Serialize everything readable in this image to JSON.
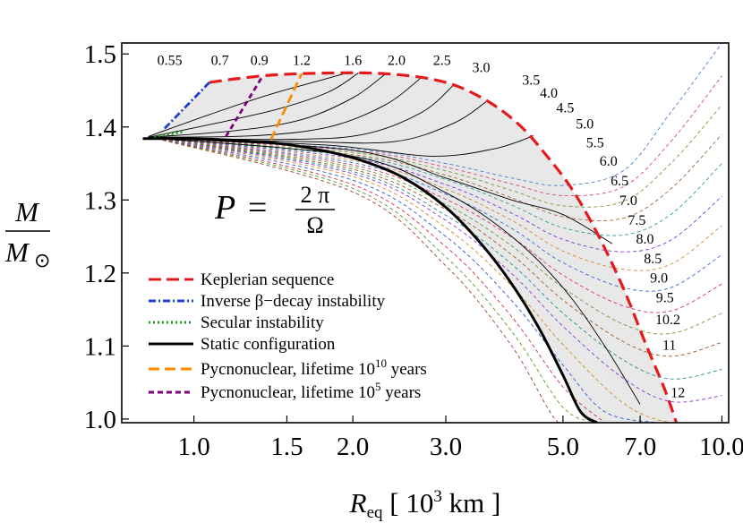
{
  "chart_data": {
    "type": "line",
    "x_scale": "log",
    "xlim": [
      0.73,
      10.3
    ],
    "ylim": [
      0.995,
      1.515
    ],
    "x_ticks": [
      {
        "value": 1.0,
        "label": "1.0"
      },
      {
        "value": 1.5,
        "label": "1.5"
      },
      {
        "value": 2.0,
        "label": "2.0"
      },
      {
        "value": 3.0,
        "label": "3.0"
      },
      {
        "value": 5.0,
        "label": "5.0"
      },
      {
        "value": 7.0,
        "label": "7.0"
      },
      {
        "value": 10.0,
        "label": "10.0"
      }
    ],
    "y_ticks": [
      {
        "value": 1.0,
        "label": "1.0"
      },
      {
        "value": 1.1,
        "label": "1.1"
      },
      {
        "value": 1.2,
        "label": "1.2"
      },
      {
        "value": 1.3,
        "label": "1.3"
      },
      {
        "value": 1.4,
        "label": "1.4"
      },
      {
        "value": 1.5,
        "label": "1.5"
      }
    ],
    "xlabel": {
      "main": "R",
      "sub": "eq",
      "rest": " [ 10",
      "sup": "3",
      "end": " km ]"
    },
    "ylabel": {
      "numerator": "M",
      "denominator": "M",
      "symbol": "⊙"
    },
    "formula": {
      "lhs": "P",
      "eq": "=",
      "numerator": "2 π",
      "denominator": "Ω"
    },
    "legend": {
      "position": "lower-left",
      "items": [
        {
          "label": "Keplerian sequence",
          "color": "#e41a1c",
          "dash": "long-dashed"
        },
        {
          "label": "Inverse β−decay instability",
          "color": "#1f3fcf",
          "dash": "dash-dot"
        },
        {
          "label": "Secular instability",
          "color": "#1a9a1a",
          "dash": "dotted"
        },
        {
          "label": "Static configuration",
          "color": "#000000",
          "dash": "solid"
        },
        {
          "label": "Pycnonuclear, lifetime 10",
          "sup": "10",
          "after": " years",
          "color": "#ff8c00",
          "dash": "long-dashed"
        },
        {
          "label": "Pycnonuclear, lifetime 10",
          "sup": "5",
          "after": " years",
          "color": "#7b007b",
          "dash": "dashed"
        }
      ]
    },
    "static": {
      "x": [
        0.8,
        0.95,
        1.1,
        1.3,
        1.5,
        1.8,
        2.1,
        2.5,
        3.0,
        3.5,
        4.0,
        4.5,
        5.0,
        5.4,
        5.8
      ],
      "y": [
        1.384,
        1.384,
        1.383,
        1.38,
        1.376,
        1.366,
        1.353,
        1.33,
        1.29,
        1.24,
        1.185,
        1.125,
        1.06,
        1.01,
        0.995
      ]
    },
    "keplerian": {
      "x": [
        1.07,
        1.2,
        1.4,
        1.6,
        1.85,
        2.1,
        2.4,
        2.8,
        3.2,
        3.7,
        4.2,
        4.7,
        5.2,
        5.8,
        6.5,
        7.2,
        7.8,
        8.2
      ],
      "y": [
        1.461,
        1.466,
        1.471,
        1.473,
        1.474,
        1.474,
        1.472,
        1.466,
        1.454,
        1.43,
        1.398,
        1.357,
        1.315,
        1.255,
        1.18,
        1.1,
        1.04,
        0.995
      ]
    },
    "inverse_beta": {
      "x": [
        0.88,
        1.07
      ],
      "y": [
        1.398,
        1.461
      ]
    },
    "secular": {
      "x": [
        0.84,
        0.95
      ],
      "y": [
        1.387,
        1.393
      ]
    },
    "pycno_1e10": {
      "x": [
        1.4,
        1.6
      ],
      "y": [
        1.383,
        1.473
      ]
    },
    "pycno_1e5": {
      "x": [
        1.15,
        1.35
      ],
      "y": [
        1.387,
        1.47
      ]
    },
    "periods_solid": [
      {
        "label": "0.55",
        "x": [
          0.82,
          1.1,
          1.4,
          1.7,
          1.95
        ],
        "y": [
          1.387,
          1.42,
          1.445,
          1.462,
          1.474
        ]
      },
      {
        "label": "0.7",
        "x": [
          0.82,
          1.1,
          1.45,
          1.8,
          2.05
        ],
        "y": [
          1.386,
          1.405,
          1.425,
          1.448,
          1.474
        ]
      },
      {
        "label": "0.9",
        "x": [
          0.82,
          1.2,
          1.6,
          2.0,
          2.3
        ],
        "y": [
          1.386,
          1.395,
          1.41,
          1.44,
          1.472
        ]
      },
      {
        "label": "1.2",
        "x": [
          0.82,
          1.3,
          1.8,
          2.3,
          2.7
        ],
        "y": [
          1.386,
          1.388,
          1.4,
          1.43,
          1.468
        ]
      },
      {
        "label": "1.6",
        "x": [
          0.82,
          1.5,
          2.1,
          2.7,
          3.1
        ],
        "y": [
          1.385,
          1.383,
          1.39,
          1.42,
          1.457
        ]
      },
      {
        "label": "2.0",
        "x": [
          0.82,
          1.6,
          2.4,
          3.1,
          3.6
        ],
        "y": [
          1.385,
          1.38,
          1.38,
          1.405,
          1.436
        ]
      },
      {
        "label": "2.5",
        "x": [
          0.82,
          1.8,
          2.8,
          3.7,
          4.4
        ],
        "y": [
          1.385,
          1.375,
          1.36,
          1.37,
          1.388
        ]
      },
      {
        "label": "3.0",
        "x": [
          0.82,
          2.0,
          3.0,
          4.0,
          5.0,
          6.2
        ],
        "y": [
          1.385,
          1.368,
          1.33,
          1.3,
          1.28,
          1.24
        ]
      },
      {
        "label": "",
        "x": [
          0.82,
          2.0,
          3.0,
          4.0,
          5.0,
          6.0,
          7.0
        ],
        "y": [
          1.385,
          1.36,
          1.31,
          1.25,
          1.18,
          1.1,
          1.02
        ]
      }
    ],
    "periods_dashed": [
      {
        "label": "3.5",
        "color": "#4a7fcf",
        "x": [
          0.85,
          2.0,
          3.0,
          4.0,
          5.0,
          6.5,
          8.0,
          10.0
        ],
        "y": [
          1.384,
          1.37,
          1.35,
          1.33,
          1.32,
          1.34,
          1.42,
          1.515
        ]
      },
      {
        "label": "4.0",
        "color": "#cf4a7f",
        "x": [
          0.85,
          2.0,
          3.0,
          4.0,
          5.0,
          6.5,
          8.0,
          10.0
        ],
        "y": [
          1.384,
          1.368,
          1.345,
          1.322,
          1.306,
          1.318,
          1.38,
          1.47
        ]
      },
      {
        "label": "4.5",
        "color": "#7f9a3a",
        "x": [
          0.85,
          2.0,
          3.0,
          4.0,
          5.0,
          6.5,
          8.0,
          10.0
        ],
        "y": [
          1.384,
          1.365,
          1.34,
          1.313,
          1.292,
          1.298,
          1.35,
          1.43
        ]
      },
      {
        "label": "5.0",
        "color": "#9a6a3a",
        "x": [
          0.85,
          2.0,
          3.0,
          4.0,
          5.0,
          6.5,
          8.0,
          10.0
        ],
        "y": [
          1.384,
          1.362,
          1.334,
          1.303,
          1.277,
          1.275,
          1.315,
          1.39
        ]
      },
      {
        "label": "5.5",
        "color": "#3a9a9a",
        "x": [
          0.85,
          2.0,
          3.0,
          4.0,
          5.0,
          6.5,
          8.0,
          10.0
        ],
        "y": [
          1.384,
          1.36,
          1.328,
          1.293,
          1.262,
          1.252,
          1.28,
          1.35
        ]
      },
      {
        "label": "6.0",
        "color": "#7a3acf",
        "x": [
          0.85,
          2.0,
          3.0,
          4.0,
          5.0,
          6.5,
          8.0,
          10.0
        ],
        "y": [
          1.384,
          1.357,
          1.321,
          1.282,
          1.246,
          1.229,
          1.245,
          1.305
        ]
      },
      {
        "label": "6.5",
        "color": "#cf8a3a",
        "x": [
          0.85,
          2.0,
          3.0,
          4.0,
          5.0,
          6.5,
          8.0,
          10.0
        ],
        "y": [
          1.384,
          1.354,
          1.315,
          1.272,
          1.23,
          1.205,
          1.212,
          1.265
        ]
      },
      {
        "label": "7.0",
        "color": "#3a6acf",
        "x": [
          0.85,
          2.0,
          3.0,
          4.0,
          5.0,
          6.5,
          8.0,
          10.0
        ],
        "y": [
          1.384,
          1.351,
          1.308,
          1.261,
          1.214,
          1.18,
          1.18,
          1.225
        ]
      },
      {
        "label": "7.5",
        "color": "#cf3a6a",
        "x": [
          0.85,
          2.0,
          3.0,
          4.0,
          5.0,
          6.5,
          8.0,
          10.0
        ],
        "y": [
          1.384,
          1.348,
          1.301,
          1.249,
          1.197,
          1.155,
          1.148,
          1.185
        ]
      },
      {
        "label": "8.0",
        "color": "#6a9a3a",
        "x": [
          0.85,
          2.0,
          3.0,
          4.0,
          5.0,
          6.5,
          8.0,
          10.0
        ],
        "y": [
          1.384,
          1.345,
          1.294,
          1.237,
          1.18,
          1.13,
          1.117,
          1.145
        ]
      },
      {
        "label": "8.5",
        "color": "#9a5a2a",
        "x": [
          0.85,
          2.0,
          3.0,
          4.0,
          5.0,
          6.5,
          8.0,
          10.0
        ],
        "y": [
          1.384,
          1.342,
          1.287,
          1.225,
          1.163,
          1.106,
          1.086,
          1.105
        ]
      },
      {
        "label": "9.0",
        "color": "#2a8a8a",
        "x": [
          0.85,
          2.0,
          3.0,
          4.0,
          5.0,
          6.5,
          8.0,
          10.0
        ],
        "y": [
          1.384,
          1.339,
          1.279,
          1.212,
          1.145,
          1.081,
          1.055,
          1.068
        ]
      },
      {
        "label": "9.5",
        "color": "#8a3acf",
        "x": [
          0.85,
          2.0,
          3.0,
          4.0,
          5.0,
          6.5,
          8.0,
          10.0
        ],
        "y": [
          1.384,
          1.336,
          1.272,
          1.199,
          1.127,
          1.056,
          1.024,
          1.032
        ]
      },
      {
        "label": "10.2",
        "color": "#cf8a2a",
        "x": [
          0.85,
          2.0,
          3.0,
          4.0,
          5.0,
          6.5,
          8.0,
          10.0
        ],
        "y": [
          1.384,
          1.332,
          1.262,
          1.182,
          1.102,
          1.022,
          0.995,
          0.995
        ]
      },
      {
        "label": "11",
        "color": "#2a5acf",
        "x": [
          0.85,
          2.0,
          3.0,
          4.0,
          5.0,
          6.0,
          7.5
        ],
        "y": [
          1.384,
          1.327,
          1.25,
          1.162,
          1.074,
          1.01,
          0.995
        ]
      },
      {
        "label": "12",
        "color": "#cf2a5a",
        "x": [
          0.85,
          2.0,
          3.0,
          4.0,
          5.0,
          6.0
        ],
        "y": [
          1.384,
          1.321,
          1.236,
          1.14,
          1.044,
          0.995
        ]
      },
      {
        "label": "",
        "color": "#5a9a2a",
        "x": [
          0.85,
          2.0,
          3.0,
          4.0,
          5.0,
          5.8
        ],
        "y": [
          1.384,
          1.316,
          1.222,
          1.12,
          1.016,
          0.995
        ]
      },
      {
        "label": "",
        "color": "#9a4a2a",
        "x": [
          0.85,
          2.0,
          3.0,
          4.0,
          4.9,
          5.6
        ],
        "y": [
          1.384,
          1.311,
          1.21,
          1.1,
          0.995,
          0.995
        ]
      }
    ],
    "period_label_positions_data": [
      {
        "label": "0.55",
        "x": 0.9,
        "y": 1.485
      },
      {
        "label": "0.7",
        "x": 1.12,
        "y": 1.485
      },
      {
        "label": "0.9",
        "x": 1.33,
        "y": 1.485
      },
      {
        "label": "1.2",
        "x": 1.6,
        "y": 1.485
      },
      {
        "label": "1.6",
        "x": 2.0,
        "y": 1.485
      },
      {
        "label": "2.0",
        "x": 2.42,
        "y": 1.485
      },
      {
        "label": "2.5",
        "x": 2.95,
        "y": 1.485
      },
      {
        "label": "3.0",
        "x": 3.5,
        "y": 1.475
      },
      {
        "label": "3.5",
        "x": 4.35,
        "y": 1.458
      },
      {
        "label": "4.0",
        "x": 4.7,
        "y": 1.44
      },
      {
        "label": "4.5",
        "x": 5.05,
        "y": 1.42
      },
      {
        "label": "5.0",
        "x": 5.5,
        "y": 1.398
      },
      {
        "label": "5.5",
        "x": 5.75,
        "y": 1.372
      },
      {
        "label": "6.0",
        "x": 6.1,
        "y": 1.347
      },
      {
        "label": "6.5",
        "x": 6.4,
        "y": 1.32
      },
      {
        "label": "7.0",
        "x": 6.65,
        "y": 1.293
      },
      {
        "label": "7.5",
        "x": 6.9,
        "y": 1.266
      },
      {
        "label": "8.0",
        "x": 7.15,
        "y": 1.24
      },
      {
        "label": "8.5",
        "x": 7.4,
        "y": 1.213
      },
      {
        "label": "9.0",
        "x": 7.6,
        "y": 1.187
      },
      {
        "label": "9.5",
        "x": 7.8,
        "y": 1.16
      },
      {
        "label": "10.2",
        "x": 7.9,
        "y": 1.13
      },
      {
        "label": "11",
        "x": 7.95,
        "y": 1.095
      },
      {
        "label": "12",
        "x": 8.25,
        "y": 1.03
      }
    ]
  }
}
